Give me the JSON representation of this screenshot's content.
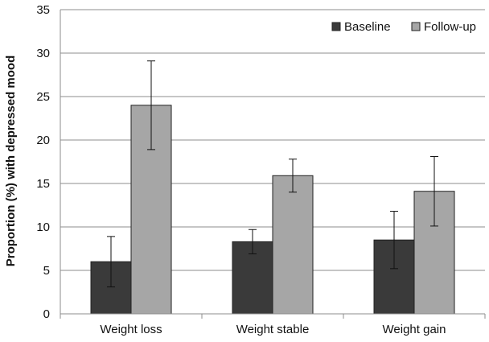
{
  "chart_data": {
    "type": "bar",
    "title": "",
    "xlabel": "",
    "ylabel": "Proportion (%) with depressed mood",
    "ylim": [
      0,
      35
    ],
    "yticks": [
      0,
      5,
      10,
      15,
      20,
      25,
      30,
      35
    ],
    "grid": true,
    "legend_position": "top-right",
    "categories": [
      "Weight loss",
      "Weight stable",
      "Weight gain"
    ],
    "series": [
      {
        "name": "Baseline",
        "color": "#3a3a3a",
        "values": [
          6.0,
          8.3,
          8.5
        ],
        "error_low": [
          3.1,
          6.9,
          5.2
        ],
        "error_high": [
          8.9,
          9.7,
          11.8
        ]
      },
      {
        "name": "Follow-up",
        "color": "#a6a6a6",
        "values": [
          24.0,
          15.9,
          14.1
        ],
        "error_low": [
          18.9,
          14.0,
          10.1
        ],
        "error_high": [
          29.1,
          17.8,
          18.1
        ]
      }
    ]
  }
}
